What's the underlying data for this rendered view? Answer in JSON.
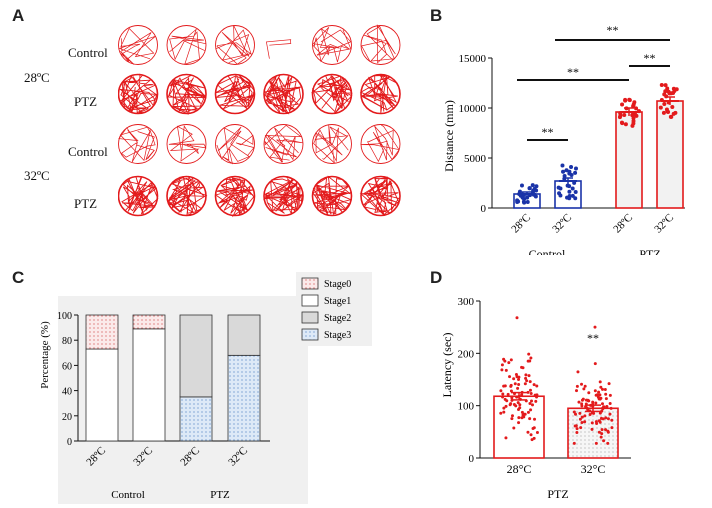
{
  "panels": {
    "a": "A",
    "b": "B",
    "c": "C",
    "d": "D"
  },
  "panel_a": {
    "temp_labels": [
      "28ºC",
      "32ºC"
    ],
    "row_labels": [
      "Control",
      "PTZ",
      "Control",
      "PTZ"
    ],
    "track_color": "#e31a1c",
    "n_per_row": 6
  },
  "chart_data": [
    {
      "id": "B",
      "type": "bar",
      "title": "",
      "ylabel": "Distance (mm)",
      "ylim": [
        0,
        15000
      ],
      "yticks": [
        "0",
        "5000",
        "10000",
        "15000"
      ],
      "categories": [
        "28ºC",
        "32ºC",
        "28ºC",
        "32ºC"
      ],
      "groups": [
        "Control",
        "PTZ"
      ],
      "values": [
        1400,
        2700,
        9600,
        10700
      ],
      "errors": [
        200,
        300,
        400,
        400
      ],
      "bar_colors": [
        "#1a33a8",
        "#1a33a8",
        "#e31a1c",
        "#e31a1c"
      ],
      "significance": [
        {
          "from": 0,
          "to": 1,
          "label": "**"
        },
        {
          "from": 0,
          "to": 2,
          "label": "**"
        },
        {
          "from": 2,
          "to": 3,
          "label": "**"
        },
        {
          "from": 1,
          "to": 3,
          "label": "**"
        }
      ]
    },
    {
      "id": "C",
      "type": "stacked-bar",
      "ylabel": "Percentage (%)",
      "ylim": [
        0,
        100
      ],
      "yticks": [
        "0",
        "20",
        "40",
        "60",
        "80",
        "100"
      ],
      "categories": [
        "28ºC",
        "32ºC",
        "28ºC",
        "32ºC"
      ],
      "groups": [
        "Control",
        "PTZ"
      ],
      "legend": [
        "Stage0",
        "Stage1",
        "Stage2",
        "Stage3"
      ],
      "series": [
        {
          "name": "Stage3",
          "values": [
            0,
            0,
            35,
            68
          ]
        },
        {
          "name": "Stage2",
          "values": [
            0,
            0,
            65,
            32
          ]
        },
        {
          "name": "Stage1",
          "values": [
            73,
            89,
            0,
            0
          ]
        },
        {
          "name": "Stage0",
          "values": [
            27,
            11,
            0,
            0
          ]
        }
      ]
    },
    {
      "id": "D",
      "type": "bar",
      "ylabel": "Latency (sec)",
      "xlabel": "PTZ",
      "ylim": [
        0,
        300
      ],
      "yticks": [
        "0",
        "100",
        "200",
        "300"
      ],
      "categories": [
        "28°C",
        "32°C"
      ],
      "values": [
        118,
        95
      ],
      "errors": [
        7,
        6
      ],
      "significance_label": "**",
      "color": "#e31a1c"
    }
  ]
}
